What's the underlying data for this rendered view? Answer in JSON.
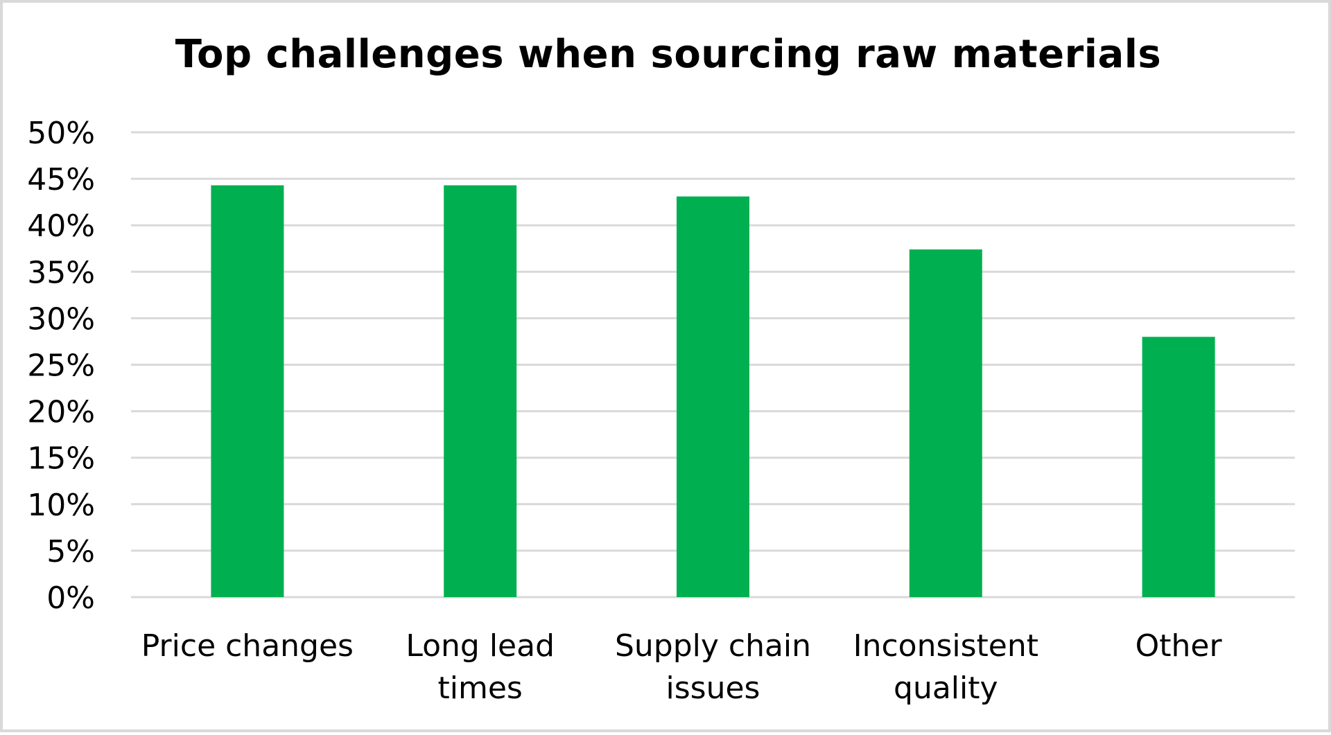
{
  "chart_data": {
    "type": "bar",
    "title": "Top challenges when sourcing raw materials",
    "categories": [
      [
        "Price changes"
      ],
      [
        "Long lead",
        "times"
      ],
      [
        "Supply chain",
        "issues"
      ],
      [
        "Inconsistent",
        "quality"
      ],
      [
        "Other"
      ]
    ],
    "values": [
      44.3,
      44.3,
      43.1,
      37.4,
      28.0
    ],
    "ylim": [
      0,
      50
    ],
    "yticks": [
      "0%",
      "5%",
      "10%",
      "15%",
      "20%",
      "25%",
      "30%",
      "35%",
      "40%",
      "45%",
      "50%"
    ],
    "xlabel": "",
    "ylabel": "",
    "grid": true,
    "legend": "none",
    "colors": {
      "bar": "#00b050",
      "grid": "#d9d9d9",
      "frame": "#d9d9d9"
    }
  }
}
